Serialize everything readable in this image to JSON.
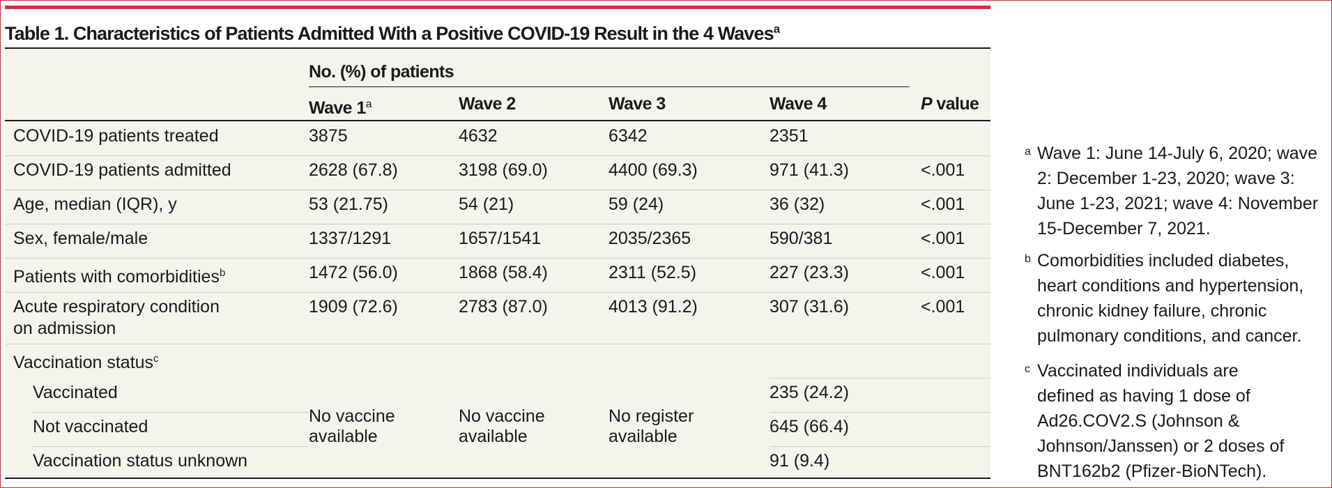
{
  "title": {
    "text": "Table 1. Characteristics of Patients Admitted With a Positive COVID-19 Result in the 4 Waves",
    "sup": "a"
  },
  "header": {
    "group_label": "No. (%) of patients",
    "columns": [
      {
        "label": "Wave 1",
        "sup": "a"
      },
      {
        "label": "Wave 2",
        "sup": ""
      },
      {
        "label": "Wave 3",
        "sup": ""
      },
      {
        "label": "Wave 4",
        "sup": ""
      }
    ],
    "p_label_italic": "P",
    "p_label_rest": " value"
  },
  "rows": [
    {
      "label": "COVID-19 patients treated",
      "sup": "",
      "values": [
        "3875",
        "4632",
        "6342",
        "2351"
      ],
      "p": ""
    },
    {
      "label": "COVID-19 patients admitted",
      "sup": "",
      "values": [
        "2628 (67.8)",
        "3198 (69.0)",
        "4400 (69.3)",
        "971 (41.3)"
      ],
      "p": "<.001"
    },
    {
      "label": "Age, median (IQR), y",
      "sup": "",
      "values": [
        "53 (21.75)",
        "54 (21)",
        "59 (24)",
        "36 (32)"
      ],
      "p": "<.001"
    },
    {
      "label": "Sex, female/male",
      "sup": "",
      "values": [
        "1337/1291",
        "1657/1541",
        "2035/2365",
        "590/381"
      ],
      "p": "<.001"
    },
    {
      "label": "Patients with comorbidities",
      "sup": "b",
      "values": [
        "1472 (56.0)",
        "1868 (58.4)",
        "2311 (52.5)",
        "227 (23.3)"
      ],
      "p": "<.001"
    },
    {
      "label_line1": "Acute respiratory condition",
      "label_line2": "on admission",
      "values": [
        "1909 (72.6)",
        "2783 (87.0)",
        "4013 (91.2)",
        "307 (31.6)"
      ],
      "p": "<.001"
    }
  ],
  "vaccination": {
    "label": "Vaccination status",
    "sup": "c",
    "subrows": [
      {
        "label": "Vaccinated",
        "wave4": "235 (24.2)"
      },
      {
        "label": "Not vaccinated",
        "wave4": "645 (66.4)"
      },
      {
        "label": "Vaccination status unknown",
        "wave4": "91 (9.4)"
      }
    ],
    "wave1_line1": "No vaccine",
    "wave1_line2": "available",
    "wave2_line1": "No vaccine",
    "wave2_line2": "available",
    "wave3_line1": "No register",
    "wave3_line2": "available"
  },
  "footnotes": [
    {
      "mark": "a",
      "lines": [
        "Wave 1: June 14-July 6, 2020; wave",
        "2: December 1-23, 2020; wave 3:",
        "June 1-23, 2021; wave 4: November",
        "15-December 7, 2021."
      ]
    },
    {
      "mark": "b",
      "lines": [
        "Comorbidities included diabetes,",
        "heart conditions and hypertension,",
        "chronic kidney failure, chronic",
        "pulmonary conditions, and cancer."
      ]
    },
    {
      "mark": "c",
      "lines": [
        "Vaccinated individuals are",
        "defined as having 1 dose of",
        "Ad26.COV2.S (Johnson &",
        "Johnson/Janssen) or 2 doses of",
        "BNT162b2 (Pfizer-BioNTech)."
      ]
    }
  ]
}
